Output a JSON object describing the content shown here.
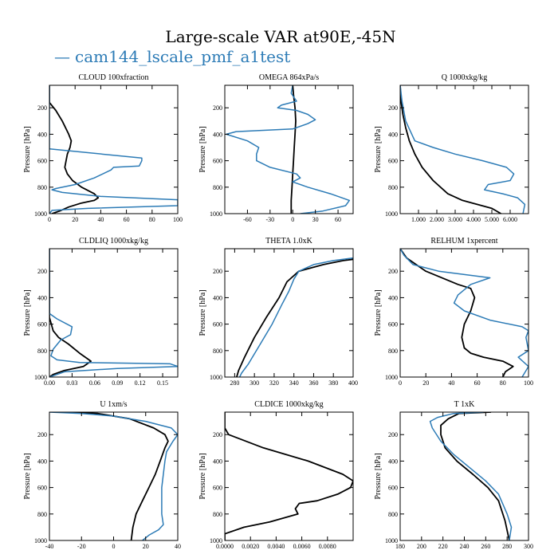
{
  "figure": {
    "title": "Large-scale VAR at90E,-45N",
    "legend_marker": "—",
    "legend_label": "cam144_lscale_pmf_a1test",
    "legend_color": "#2c7bb6",
    "black_color": "#000000"
  },
  "chart_data": [
    {
      "type": "line",
      "title": "CLOUD  100xfraction",
      "ylabel": "Pressure [hPa]",
      "xlim": [
        0,
        100
      ],
      "ylim": [
        1000,
        30
      ],
      "xticks": [
        0,
        20,
        40,
        60,
        80,
        100
      ],
      "xtick_labels": [
        "0",
        "20",
        "40",
        "60",
        "80",
        "100"
      ],
      "yticks": [
        200,
        400,
        600,
        800,
        1000
      ],
      "ytick_labels": [
        "200",
        "400",
        "600",
        "800",
        "1000"
      ],
      "series": [
        {
          "name": "black",
          "color": "#000000",
          "x": [
            0,
            0,
            5,
            10,
            15,
            17,
            16,
            14,
            13,
            12,
            14,
            18,
            25,
            35,
            38,
            35,
            25,
            15,
            8,
            2
          ],
          "y": [
            30,
            160,
            220,
            300,
            400,
            450,
            500,
            550,
            600,
            650,
            700,
            750,
            800,
            850,
            880,
            900,
            920,
            950,
            980,
            1000
          ]
        },
        {
          "name": "cam144_lscale_pmf_a1test",
          "color": "#2c7bb6",
          "x": [
            0,
            0,
            0,
            72,
            72,
            70,
            50,
            48,
            35,
            20,
            5,
            2,
            10,
            40,
            100,
            100,
            30,
            2,
            0
          ],
          "y": [
            30,
            490,
            510,
            580,
            600,
            640,
            650,
            670,
            730,
            780,
            810,
            820,
            840,
            870,
            895,
            940,
            960,
            975,
            1000
          ]
        }
      ]
    },
    {
      "type": "line",
      "title": "OMEGA  864xPa/s",
      "ylabel": "Pressure [hPa]",
      "xlim": [
        -90,
        80
      ],
      "ylim": [
        1000,
        30
      ],
      "xticks": [
        -60,
        -30,
        0,
        30,
        60
      ],
      "xtick_labels": [
        "-60",
        "-30",
        "0",
        "30",
        "60"
      ],
      "yticks": [
        200,
        400,
        600,
        800,
        1000
      ],
      "ytick_labels": [
        "200",
        "400",
        "600",
        "800",
        "1000"
      ],
      "series": [
        {
          "name": "black",
          "color": "#000000",
          "x": [
            0,
            1,
            3,
            4,
            3,
            2,
            1,
            0,
            -1,
            -2,
            -2
          ],
          "y": [
            30,
            100,
            200,
            300,
            400,
            500,
            600,
            700,
            800,
            900,
            1000
          ]
        },
        {
          "name": "cam144_lscale_pmf_a1test",
          "color": "#2c7bb6",
          "x": [
            0,
            -2,
            5,
            -15,
            -20,
            5,
            20,
            30,
            20,
            0,
            -75,
            -88,
            -60,
            -45,
            -48,
            -48,
            -30,
            5,
            10,
            0,
            20,
            50,
            75,
            70,
            40,
            10
          ],
          "y": [
            30,
            90,
            150,
            180,
            200,
            220,
            250,
            290,
            320,
            360,
            380,
            400,
            450,
            500,
            550,
            600,
            650,
            700,
            730,
            760,
            800,
            850,
            900,
            940,
            980,
            1000
          ]
        }
      ]
    },
    {
      "type": "line",
      "title": "Q  1000xkg/kg",
      "ylabel": "Pressure [hPa]",
      "xlim": [
        0,
        7000
      ],
      "ylim": [
        1000,
        30
      ],
      "xticks": [
        1000,
        2000,
        3000,
        4000,
        5000,
        6000
      ],
      "xtick_labels": [
        "1.000",
        "2.000",
        "3.000",
        "4.000",
        "5.000",
        "6.000"
      ],
      "yticks": [
        200,
        400,
        600,
        800,
        1000
      ],
      "ytick_labels": [
        "200",
        "400",
        "600",
        "800",
        "1000"
      ],
      "series": [
        {
          "name": "black",
          "color": "#000000",
          "x": [
            0,
            50,
            150,
            300,
            500,
            800,
            1200,
            1800,
            2600,
            3400,
            4200,
            5000,
            5500
          ],
          "y": [
            30,
            150,
            250,
            350,
            450,
            550,
            650,
            750,
            850,
            900,
            930,
            960,
            1000
          ]
        },
        {
          "name": "cam144_lscale_pmf_a1test",
          "color": "#2c7bb6",
          "x": [
            0,
            100,
            300,
            800,
            1800,
            3000,
            4500,
            5800,
            6200,
            6000,
            4800,
            4600,
            5600,
            6400,
            6800,
            6700
          ],
          "y": [
            30,
            150,
            300,
            450,
            500,
            550,
            600,
            650,
            700,
            750,
            780,
            820,
            850,
            880,
            930,
            1000
          ]
        }
      ]
    },
    {
      "type": "line",
      "title": "CLDLIQ  1000xkg/kg",
      "ylabel": "Pressure [hPa]",
      "xlim": [
        0,
        0.17
      ],
      "ylim": [
        1000,
        30
      ],
      "xticks": [
        0,
        0.03,
        0.06,
        0.09,
        0.12,
        0.15
      ],
      "xtick_labels": [
        "0.00",
        "0.03",
        "0.06",
        "0.09",
        "0.12",
        "0.15"
      ],
      "yticks": [
        200,
        400,
        600,
        800,
        1000
      ],
      "ytick_labels": [
        "200",
        "400",
        "600",
        "800",
        "1000"
      ],
      "series": [
        {
          "name": "black",
          "color": "#000000",
          "x": [
            0,
            0,
            0.005,
            0.012,
            0.025,
            0.04,
            0.055,
            0.045,
            0.02,
            0.005,
            0
          ],
          "y": [
            30,
            550,
            650,
            700,
            750,
            820,
            880,
            920,
            950,
            980,
            1000
          ]
        },
        {
          "name": "cam144_lscale_pmf_a1test",
          "color": "#2c7bb6",
          "x": [
            0,
            0,
            0.01,
            0.03,
            0.028,
            0.015,
            0.005,
            0.002,
            0.01,
            0.04,
            0.16,
            0.17,
            0.09,
            0.02,
            0
          ],
          "y": [
            30,
            520,
            560,
            620,
            680,
            720,
            790,
            840,
            870,
            890,
            900,
            920,
            935,
            960,
            1000
          ]
        }
      ]
    },
    {
      "type": "line",
      "title": "THETA  1.0xK",
      "ylabel": "Pressure [hPa]",
      "xlim": [
        270,
        400
      ],
      "ylim": [
        1000,
        30
      ],
      "xticks": [
        280,
        300,
        320,
        340,
        360,
        380,
        400
      ],
      "xtick_labels": [
        "280",
        "300",
        "320",
        "340",
        "360",
        "380",
        "400"
      ],
      "yticks": [
        200,
        400,
        600,
        800,
        1000
      ],
      "ytick_labels": [
        "200",
        "400",
        "600",
        "800",
        "1000"
      ],
      "series": [
        {
          "name": "black",
          "color": "#000000",
          "x": [
            400,
            390,
            370,
            345,
            333,
            325,
            312,
            300,
            290,
            284,
            282
          ],
          "y": [
            110,
            120,
            150,
            200,
            280,
            400,
            550,
            700,
            850,
            950,
            1000
          ]
        },
        {
          "name": "cam144_lscale_pmf_a1test",
          "color": "#2c7bb6",
          "x": [
            400,
            380,
            360,
            345,
            340,
            335,
            328,
            318,
            306,
            294,
            287,
            285
          ],
          "y": [
            100,
            120,
            150,
            200,
            260,
            350,
            450,
            600,
            750,
            900,
            970,
            1000
          ]
        }
      ]
    },
    {
      "type": "line",
      "title": "RELHUM  1xpercent",
      "ylabel": "Pressure [hPa]",
      "xlim": [
        0,
        100
      ],
      "ylim": [
        1000,
        30
      ],
      "xticks": [
        0,
        20,
        40,
        60,
        80,
        100
      ],
      "xtick_labels": [
        "0",
        "20",
        "40",
        "60",
        "80",
        "100"
      ],
      "yticks": [
        200,
        400,
        600,
        800,
        1000
      ],
      "ytick_labels": [
        "200",
        "400",
        "600",
        "800",
        "1000"
      ],
      "series": [
        {
          "name": "black",
          "color": "#000000",
          "x": [
            0,
            5,
            20,
            45,
            55,
            58,
            55,
            50,
            48,
            50,
            55,
            65,
            80,
            88,
            82,
            80
          ],
          "y": [
            30,
            100,
            200,
            300,
            330,
            400,
            500,
            600,
            700,
            780,
            820,
            850,
            880,
            920,
            960,
            1000
          ]
        },
        {
          "name": "cam144_lscale_pmf_a1test",
          "color": "#2c7bb6",
          "x": [
            0,
            3,
            10,
            30,
            70,
            55,
            45,
            42,
            50,
            70,
            95,
            100,
            98,
            100,
            92,
            100,
            95
          ],
          "y": [
            30,
            80,
            150,
            200,
            250,
            300,
            380,
            440,
            500,
            570,
            620,
            650,
            700,
            800,
            850,
            920,
            1000
          ]
        }
      ]
    },
    {
      "type": "line",
      "title": "U  1xm/s",
      "ylabel": "Pressure [hPa]",
      "xlim": [
        -40,
        40
      ],
      "ylim": [
        1000,
        30
      ],
      "xticks": [
        -40,
        -20,
        0,
        20,
        40
      ],
      "xtick_labels": [
        "-40",
        "-20",
        "0",
        "20",
        "40"
      ],
      "yticks": [
        200,
        400,
        600,
        800,
        1000
      ],
      "ytick_labels": [
        "200",
        "400",
        "600",
        "800",
        "1000"
      ],
      "series": [
        {
          "name": "black",
          "color": "#000000",
          "x": [
            -30,
            -10,
            10,
            25,
            32,
            34,
            32,
            29,
            26,
            22,
            18,
            14,
            12,
            11
          ],
          "y": [
            30,
            40,
            80,
            150,
            200,
            250,
            300,
            400,
            500,
            600,
            700,
            800,
            900,
            1000
          ]
        },
        {
          "name": "cam144_lscale_pmf_a1test",
          "color": "#2c7bb6",
          "x": [
            -40,
            -20,
            0,
            20,
            36,
            40,
            37,
            33,
            32,
            31,
            30,
            30,
            30,
            31,
            28,
            25,
            22,
            20,
            18
          ],
          "y": [
            30,
            40,
            60,
            100,
            150,
            200,
            250,
            330,
            400,
            500,
            600,
            700,
            800,
            880,
            920,
            940,
            960,
            980,
            1000
          ]
        }
      ]
    },
    {
      "type": "line",
      "title": "CLDICE  1000xkg/kg",
      "ylabel": "Pressure [hPa]",
      "xlim": [
        0,
        0.01
      ],
      "ylim": [
        1000,
        30
      ],
      "xticks": [
        0,
        0.002,
        0.004,
        0.006,
        0.008
      ],
      "xtick_labels": [
        "0.0000",
        "0.0020",
        "0.0040",
        "0.0060",
        "0.0080"
      ],
      "yticks": [
        200,
        400,
        600,
        800,
        1000
      ],
      "ytick_labels": [
        "200",
        "400",
        "600",
        "800",
        "1000"
      ],
      "series": [
        {
          "name": "black",
          "color": "#000000",
          "x": [
            0,
            0,
            0.0003,
            0.003,
            0.0065,
            0.0092,
            0.01,
            0.0098,
            0.0088,
            0.0072,
            0.0058,
            0.0055,
            0.0057,
            0.0035,
            0.0015,
            0,
            0
          ],
          "y": [
            30,
            150,
            200,
            300,
            400,
            500,
            550,
            600,
            650,
            700,
            720,
            760,
            800,
            860,
            900,
            950,
            1000
          ]
        }
      ]
    },
    {
      "type": "line",
      "title": "T  1xK",
      "ylabel": "Pressure [hPa]",
      "xlim": [
        180,
        300
      ],
      "ylim": [
        1000,
        30
      ],
      "xticks": [
        180,
        200,
        220,
        240,
        260,
        280,
        300
      ],
      "xtick_labels": [
        "180",
        "200",
        "220",
        "240",
        "260",
        "280",
        "300"
      ],
      "yticks": [
        200,
        400,
        600,
        800,
        1000
      ],
      "ytick_labels": [
        "200",
        "400",
        "600",
        "800",
        "1000"
      ],
      "series": [
        {
          "name": "black",
          "color": "#000000",
          "x": [
            265,
            235,
            225,
            218,
            218,
            222,
            233,
            248,
            262,
            272,
            278,
            282
          ],
          "y": [
            30,
            40,
            80,
            130,
            200,
            300,
            400,
            500,
            600,
            700,
            850,
            1000
          ]
        },
        {
          "name": "cam144_lscale_pmf_a1test",
          "color": "#2c7bb6",
          "x": [
            258,
            230,
            215,
            208,
            210,
            218,
            230,
            245,
            260,
            272,
            280,
            284,
            282
          ],
          "y": [
            30,
            40,
            70,
            100,
            150,
            250,
            350,
            450,
            550,
            650,
            800,
            900,
            1000
          ]
        }
      ]
    }
  ]
}
